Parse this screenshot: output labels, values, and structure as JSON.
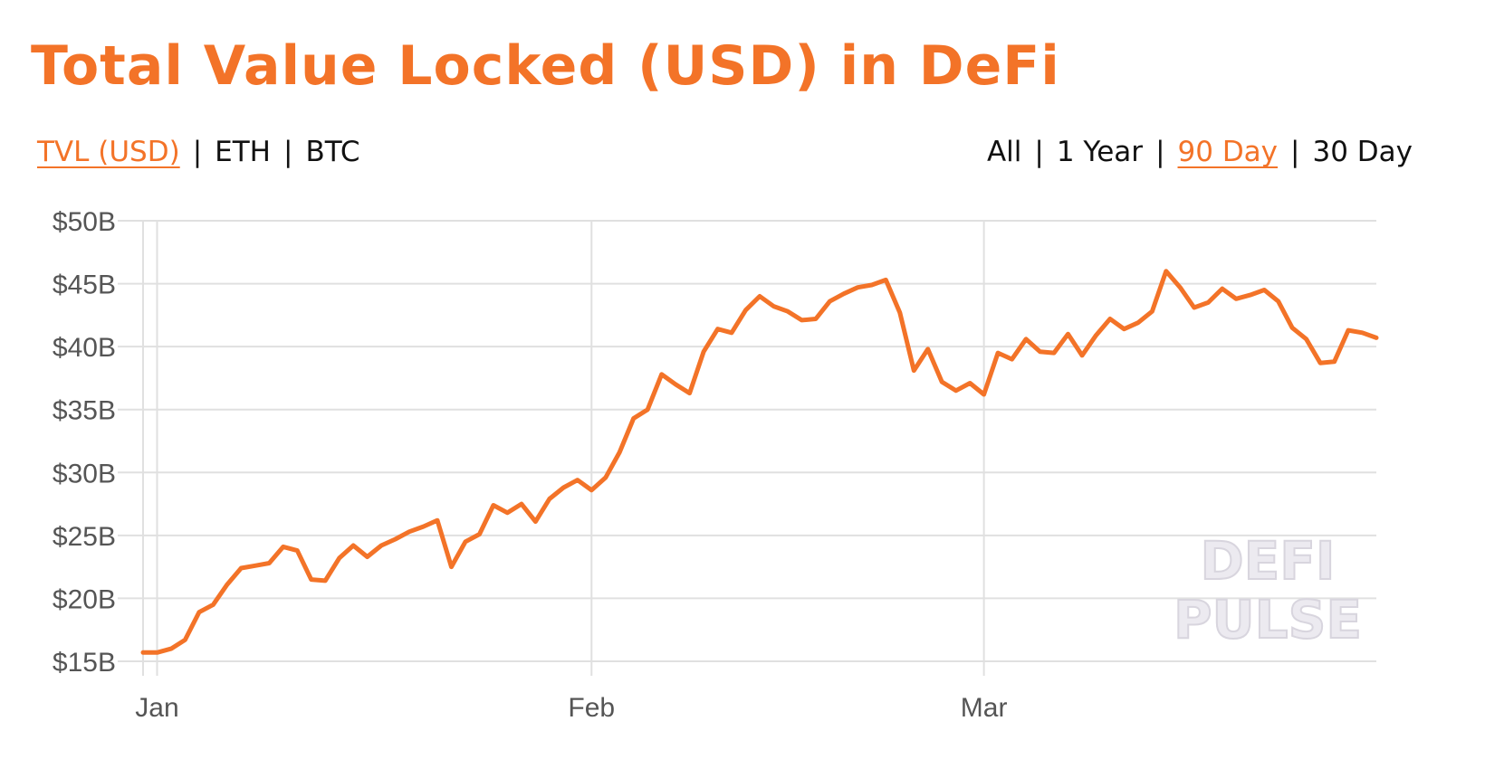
{
  "header": {
    "title": "Total Value Locked (USD) in DeFi"
  },
  "unit_toggle": {
    "options": [
      {
        "label": "TVL (USD)",
        "active": true
      },
      {
        "label": "ETH",
        "active": false
      },
      {
        "label": "BTC",
        "active": false
      }
    ],
    "separator": "|"
  },
  "range_toggle": {
    "options": [
      {
        "label": "All",
        "active": false
      },
      {
        "label": "1 Year",
        "active": false
      },
      {
        "label": "90 Day",
        "active": true
      },
      {
        "label": "30 Day",
        "active": false
      }
    ],
    "separator": "|"
  },
  "watermark": {
    "line1": "DEFI",
    "line2": "PULSE"
  },
  "colors": {
    "accent": "#f37328",
    "grid": "#e0e0e0",
    "tick_text": "#555555",
    "watermark": "#eceaf0"
  },
  "chart_data": {
    "type": "line",
    "title": "Total Value Locked (USD) in DeFi",
    "xlabel": "",
    "ylabel": "",
    "ylim": [
      15,
      50
    ],
    "y_ticks": [
      15,
      20,
      25,
      30,
      35,
      40,
      45,
      50
    ],
    "y_tick_labels": [
      "$15B",
      "$20B",
      "$25B",
      "$30B",
      "$35B",
      "$40B",
      "$45B",
      "$50B"
    ],
    "x_ticks": [
      {
        "label": "Jan",
        "x": 0
      },
      {
        "label": "Feb",
        "x": 31
      },
      {
        "label": "Mar",
        "x": 59
      }
    ],
    "grid": true,
    "legend": "none",
    "series": [
      {
        "color": "#f37328",
        "values": [
          [
            -1,
            15.7
          ],
          [
            0,
            15.7
          ],
          [
            1,
            16.0
          ],
          [
            2,
            16.7
          ],
          [
            3,
            18.9
          ],
          [
            4,
            19.5
          ],
          [
            5,
            21.1
          ],
          [
            6,
            22.4
          ],
          [
            7,
            22.6
          ],
          [
            8,
            22.8
          ],
          [
            9,
            24.1
          ],
          [
            10,
            23.8
          ],
          [
            11,
            21.5
          ],
          [
            12,
            21.4
          ],
          [
            13,
            23.2
          ],
          [
            14,
            24.2
          ],
          [
            15,
            23.3
          ],
          [
            16,
            24.2
          ],
          [
            17,
            24.7
          ],
          [
            18,
            25.3
          ],
          [
            19,
            25.7
          ],
          [
            20,
            26.2
          ],
          [
            21,
            22.5
          ],
          [
            22,
            24.5
          ],
          [
            23,
            25.1
          ],
          [
            24,
            27.4
          ],
          [
            25,
            26.8
          ],
          [
            26,
            27.5
          ],
          [
            27,
            26.1
          ],
          [
            28,
            27.9
          ],
          [
            29,
            28.8
          ],
          [
            30,
            29.4
          ],
          [
            31,
            28.6
          ],
          [
            32,
            29.6
          ],
          [
            33,
            31.6
          ],
          [
            34,
            34.3
          ],
          [
            35,
            35.0
          ],
          [
            36,
            37.8
          ],
          [
            37,
            37.0
          ],
          [
            38,
            36.3
          ],
          [
            39,
            39.6
          ],
          [
            40,
            41.4
          ],
          [
            41,
            41.1
          ],
          [
            42,
            42.9
          ],
          [
            43,
            44.0
          ],
          [
            44,
            43.2
          ],
          [
            45,
            42.8
          ],
          [
            46,
            42.1
          ],
          [
            47,
            42.2
          ],
          [
            48,
            43.6
          ],
          [
            49,
            44.2
          ],
          [
            50,
            44.7
          ],
          [
            51,
            44.9
          ],
          [
            52,
            45.3
          ],
          [
            53,
            42.7
          ],
          [
            54,
            38.1
          ],
          [
            55,
            39.8
          ],
          [
            56,
            37.2
          ],
          [
            57,
            36.5
          ],
          [
            58,
            37.1
          ],
          [
            59,
            36.2
          ],
          [
            60,
            39.5
          ],
          [
            61,
            39.0
          ],
          [
            62,
            40.6
          ],
          [
            63,
            39.6
          ],
          [
            64,
            39.5
          ],
          [
            65,
            41.0
          ],
          [
            66,
            39.3
          ],
          [
            67,
            40.9
          ],
          [
            68,
            42.2
          ],
          [
            69,
            41.4
          ],
          [
            70,
            41.9
          ],
          [
            71,
            42.8
          ],
          [
            72,
            46.0
          ],
          [
            73,
            44.7
          ],
          [
            74,
            43.1
          ],
          [
            75,
            43.5
          ],
          [
            76,
            44.6
          ],
          [
            77,
            43.8
          ],
          [
            78,
            44.1
          ],
          [
            79,
            44.5
          ],
          [
            80,
            43.6
          ],
          [
            81,
            41.5
          ],
          [
            82,
            40.6
          ],
          [
            83,
            38.7
          ],
          [
            84,
            38.8
          ],
          [
            85,
            41.3
          ],
          [
            86,
            41.1
          ],
          [
            87,
            40.7
          ]
        ]
      }
    ]
  }
}
